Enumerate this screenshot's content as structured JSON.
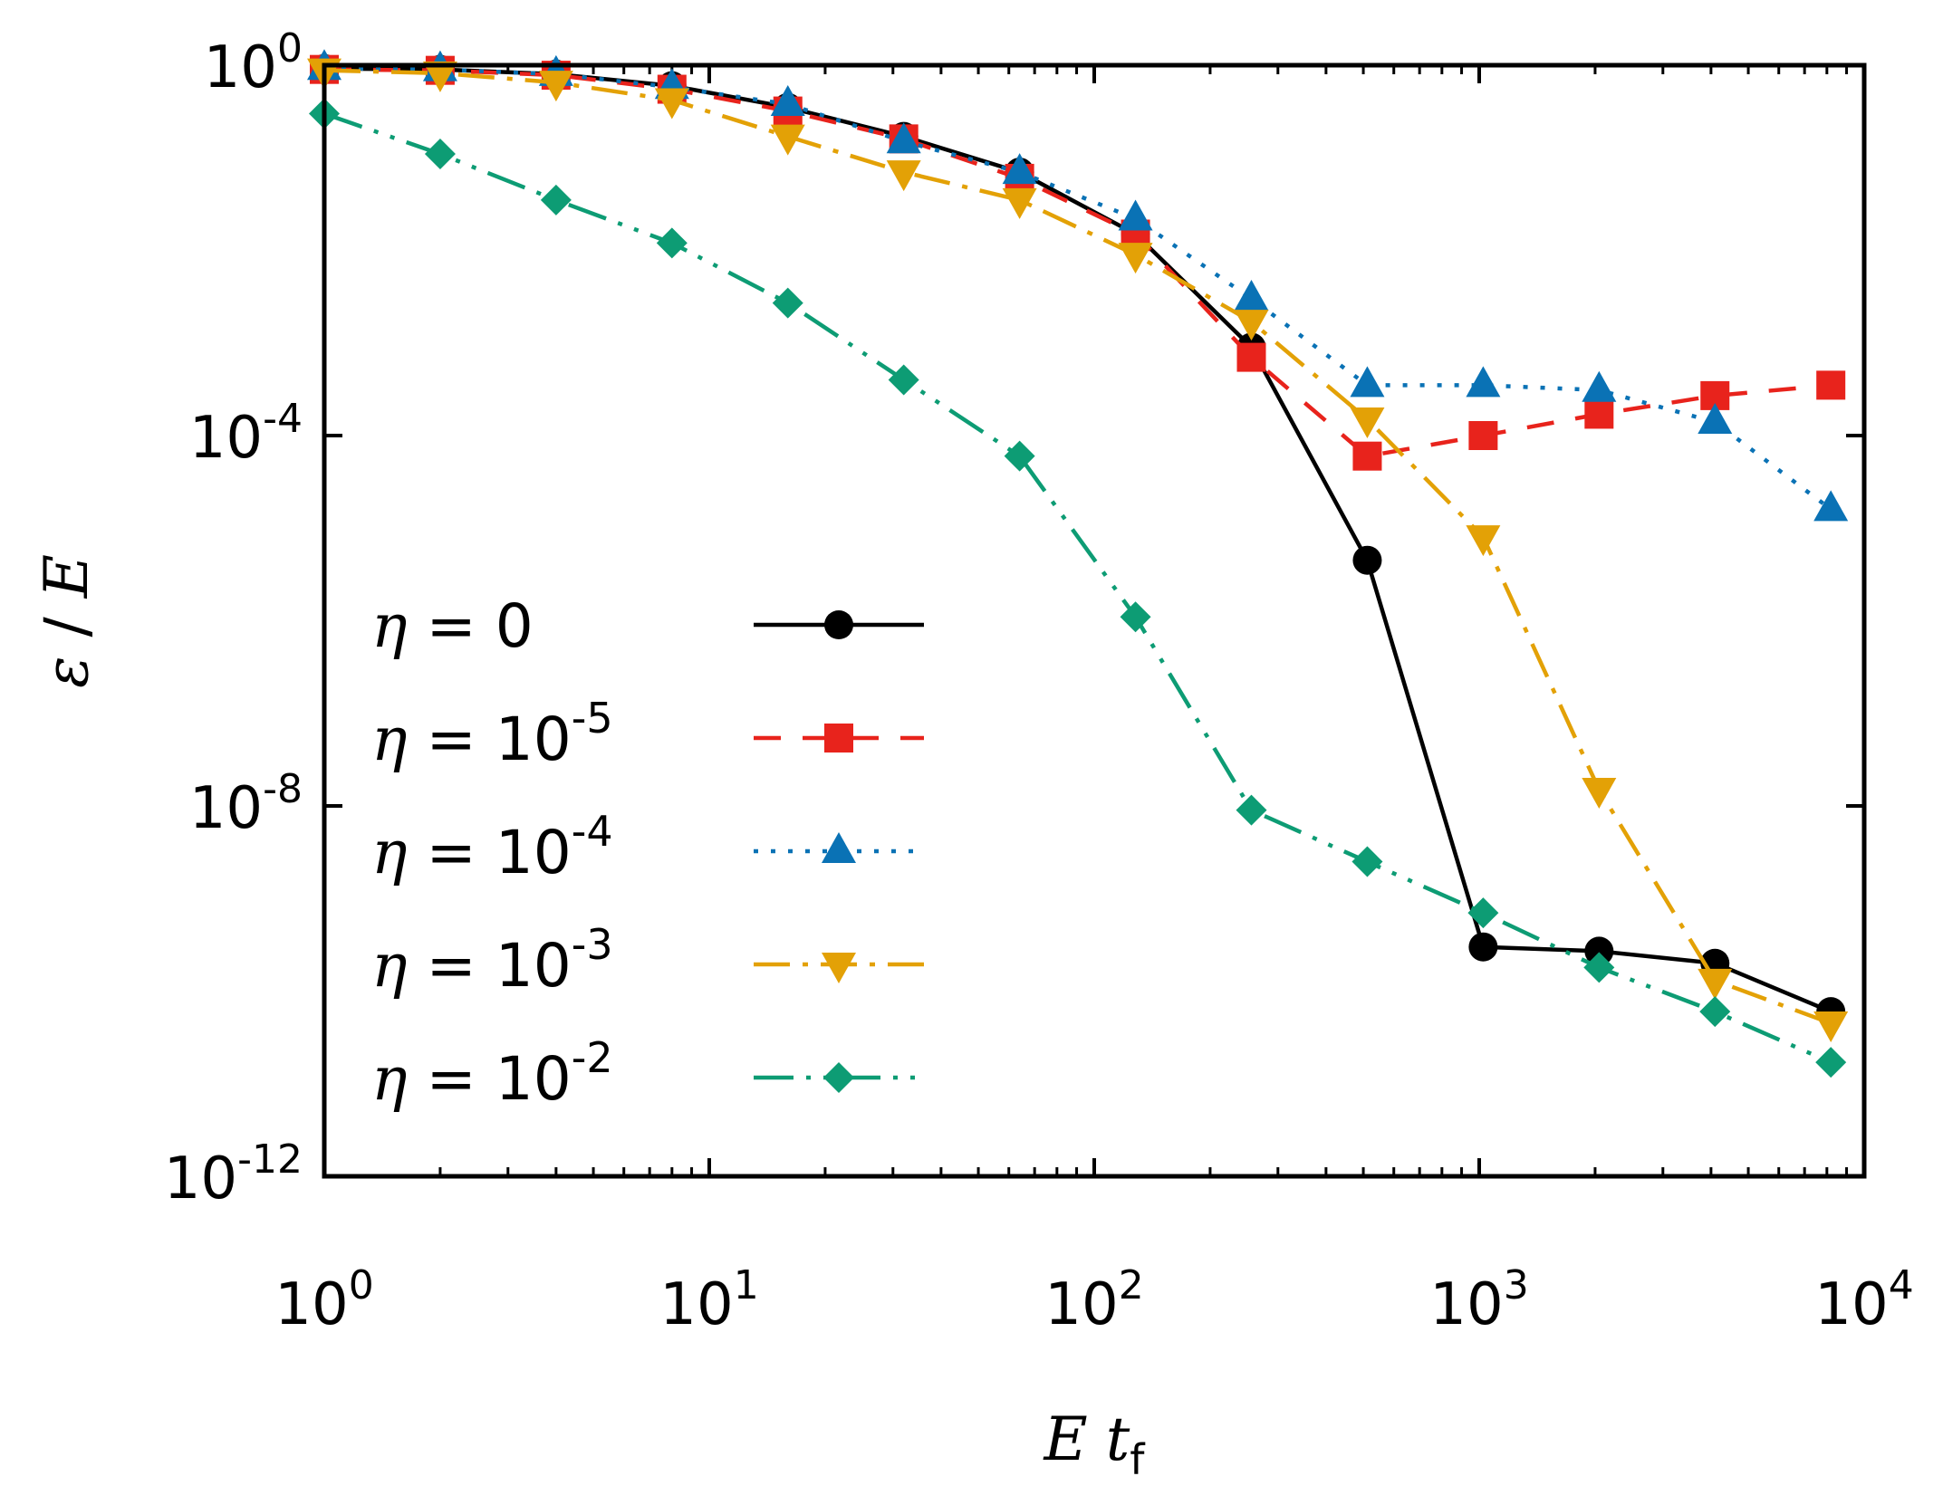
{
  "chart_data": {
    "type": "line",
    "title": "",
    "xscale": "log",
    "yscale": "log",
    "xlim": [
      1,
      10000
    ],
    "ylim": [
      1e-12,
      1
    ],
    "xlabel": {
      "base": "E",
      "var": "t",
      "sub": "f"
    },
    "ylabel": {
      "num": "ε",
      "sep": " / ",
      "den": "E"
    },
    "x_ticks": [
      {
        "value": 1,
        "base": "10",
        "exp": "0"
      },
      {
        "value": 10,
        "base": "10",
        "exp": "1"
      },
      {
        "value": 100,
        "base": "10",
        "exp": "2"
      },
      {
        "value": 1000,
        "base": "10",
        "exp": "3"
      },
      {
        "value": 10000,
        "base": "10",
        "exp": "4"
      }
    ],
    "y_ticks": [
      {
        "value": 1,
        "base": "10",
        "exp": "0"
      },
      {
        "value": 0.0001,
        "base": "10",
        "exp": "-4"
      },
      {
        "value": 1e-08,
        "base": "10",
        "exp": "-8"
      },
      {
        "value": 1e-12,
        "base": "10",
        "exp": "-12"
      }
    ],
    "x": [
      1,
      2,
      4,
      8,
      16,
      32,
      64,
      128,
      256,
      512,
      1024,
      2048,
      4096,
      8192
    ],
    "legend_position": "lower-left",
    "series": [
      {
        "name": "η = 0",
        "sym": "η",
        "eq": " = ",
        "base": "0",
        "exp": "",
        "color": "#000000",
        "marker": "circle",
        "dash": "",
        "values": [
          0.92,
          0.9,
          0.8,
          0.6,
          0.35,
          0.17,
          0.07,
          0.015,
          0.0009,
          4.5e-06,
          3e-10,
          2.7e-10,
          2e-10,
          6e-11
        ]
      },
      {
        "name": "η = 10^-5",
        "sym": "η",
        "eq": " = ",
        "base": "10",
        "exp": "-5",
        "color": "#e8231c",
        "marker": "square",
        "dash": "30,24",
        "values": [
          0.9,
          0.88,
          0.78,
          0.55,
          0.32,
          0.16,
          0.06,
          0.015,
          0.0007,
          6e-05,
          0.0001,
          0.00017,
          0.00027,
          0.00035
        ]
      },
      {
        "name": "η = 10^-4",
        "sym": "η",
        "eq": " = ",
        "base": "10",
        "exp": "-4",
        "color": "#0a72b5",
        "marker": "triangle-up",
        "dash": "5,14",
        "values": [
          0.93,
          0.9,
          0.8,
          0.58,
          0.38,
          0.15,
          0.07,
          0.022,
          0.003,
          0.00035,
          0.00035,
          0.00031,
          0.00014,
          1.6e-05
        ]
      },
      {
        "name": "η = 10^-3",
        "sym": "η",
        "eq": " = ",
        "base": "10",
        "exp": "-3",
        "color": "#e3a106",
        "marker": "triangle-down",
        "dash": "40,14,6,14",
        "values": [
          0.88,
          0.82,
          0.65,
          0.42,
          0.17,
          0.07,
          0.035,
          0.009,
          0.0017,
          0.00015,
          8e-06,
          1.5e-08,
          1.3e-10,
          4.5e-11
        ]
      },
      {
        "name": "η = 10^-2",
        "sym": "η",
        "eq": " = ",
        "base": "10",
        "exp": "-2",
        "color": "#0d9c74",
        "marker": "diamond",
        "dash": "44,14,5,14,5,14",
        "values": [
          0.3,
          0.11,
          0.035,
          0.012,
          0.0027,
          0.0004,
          6e-05,
          1.1e-06,
          9e-09,
          2.5e-09,
          7e-10,
          1.8e-10,
          6e-11,
          1.7e-11
        ]
      }
    ]
  }
}
